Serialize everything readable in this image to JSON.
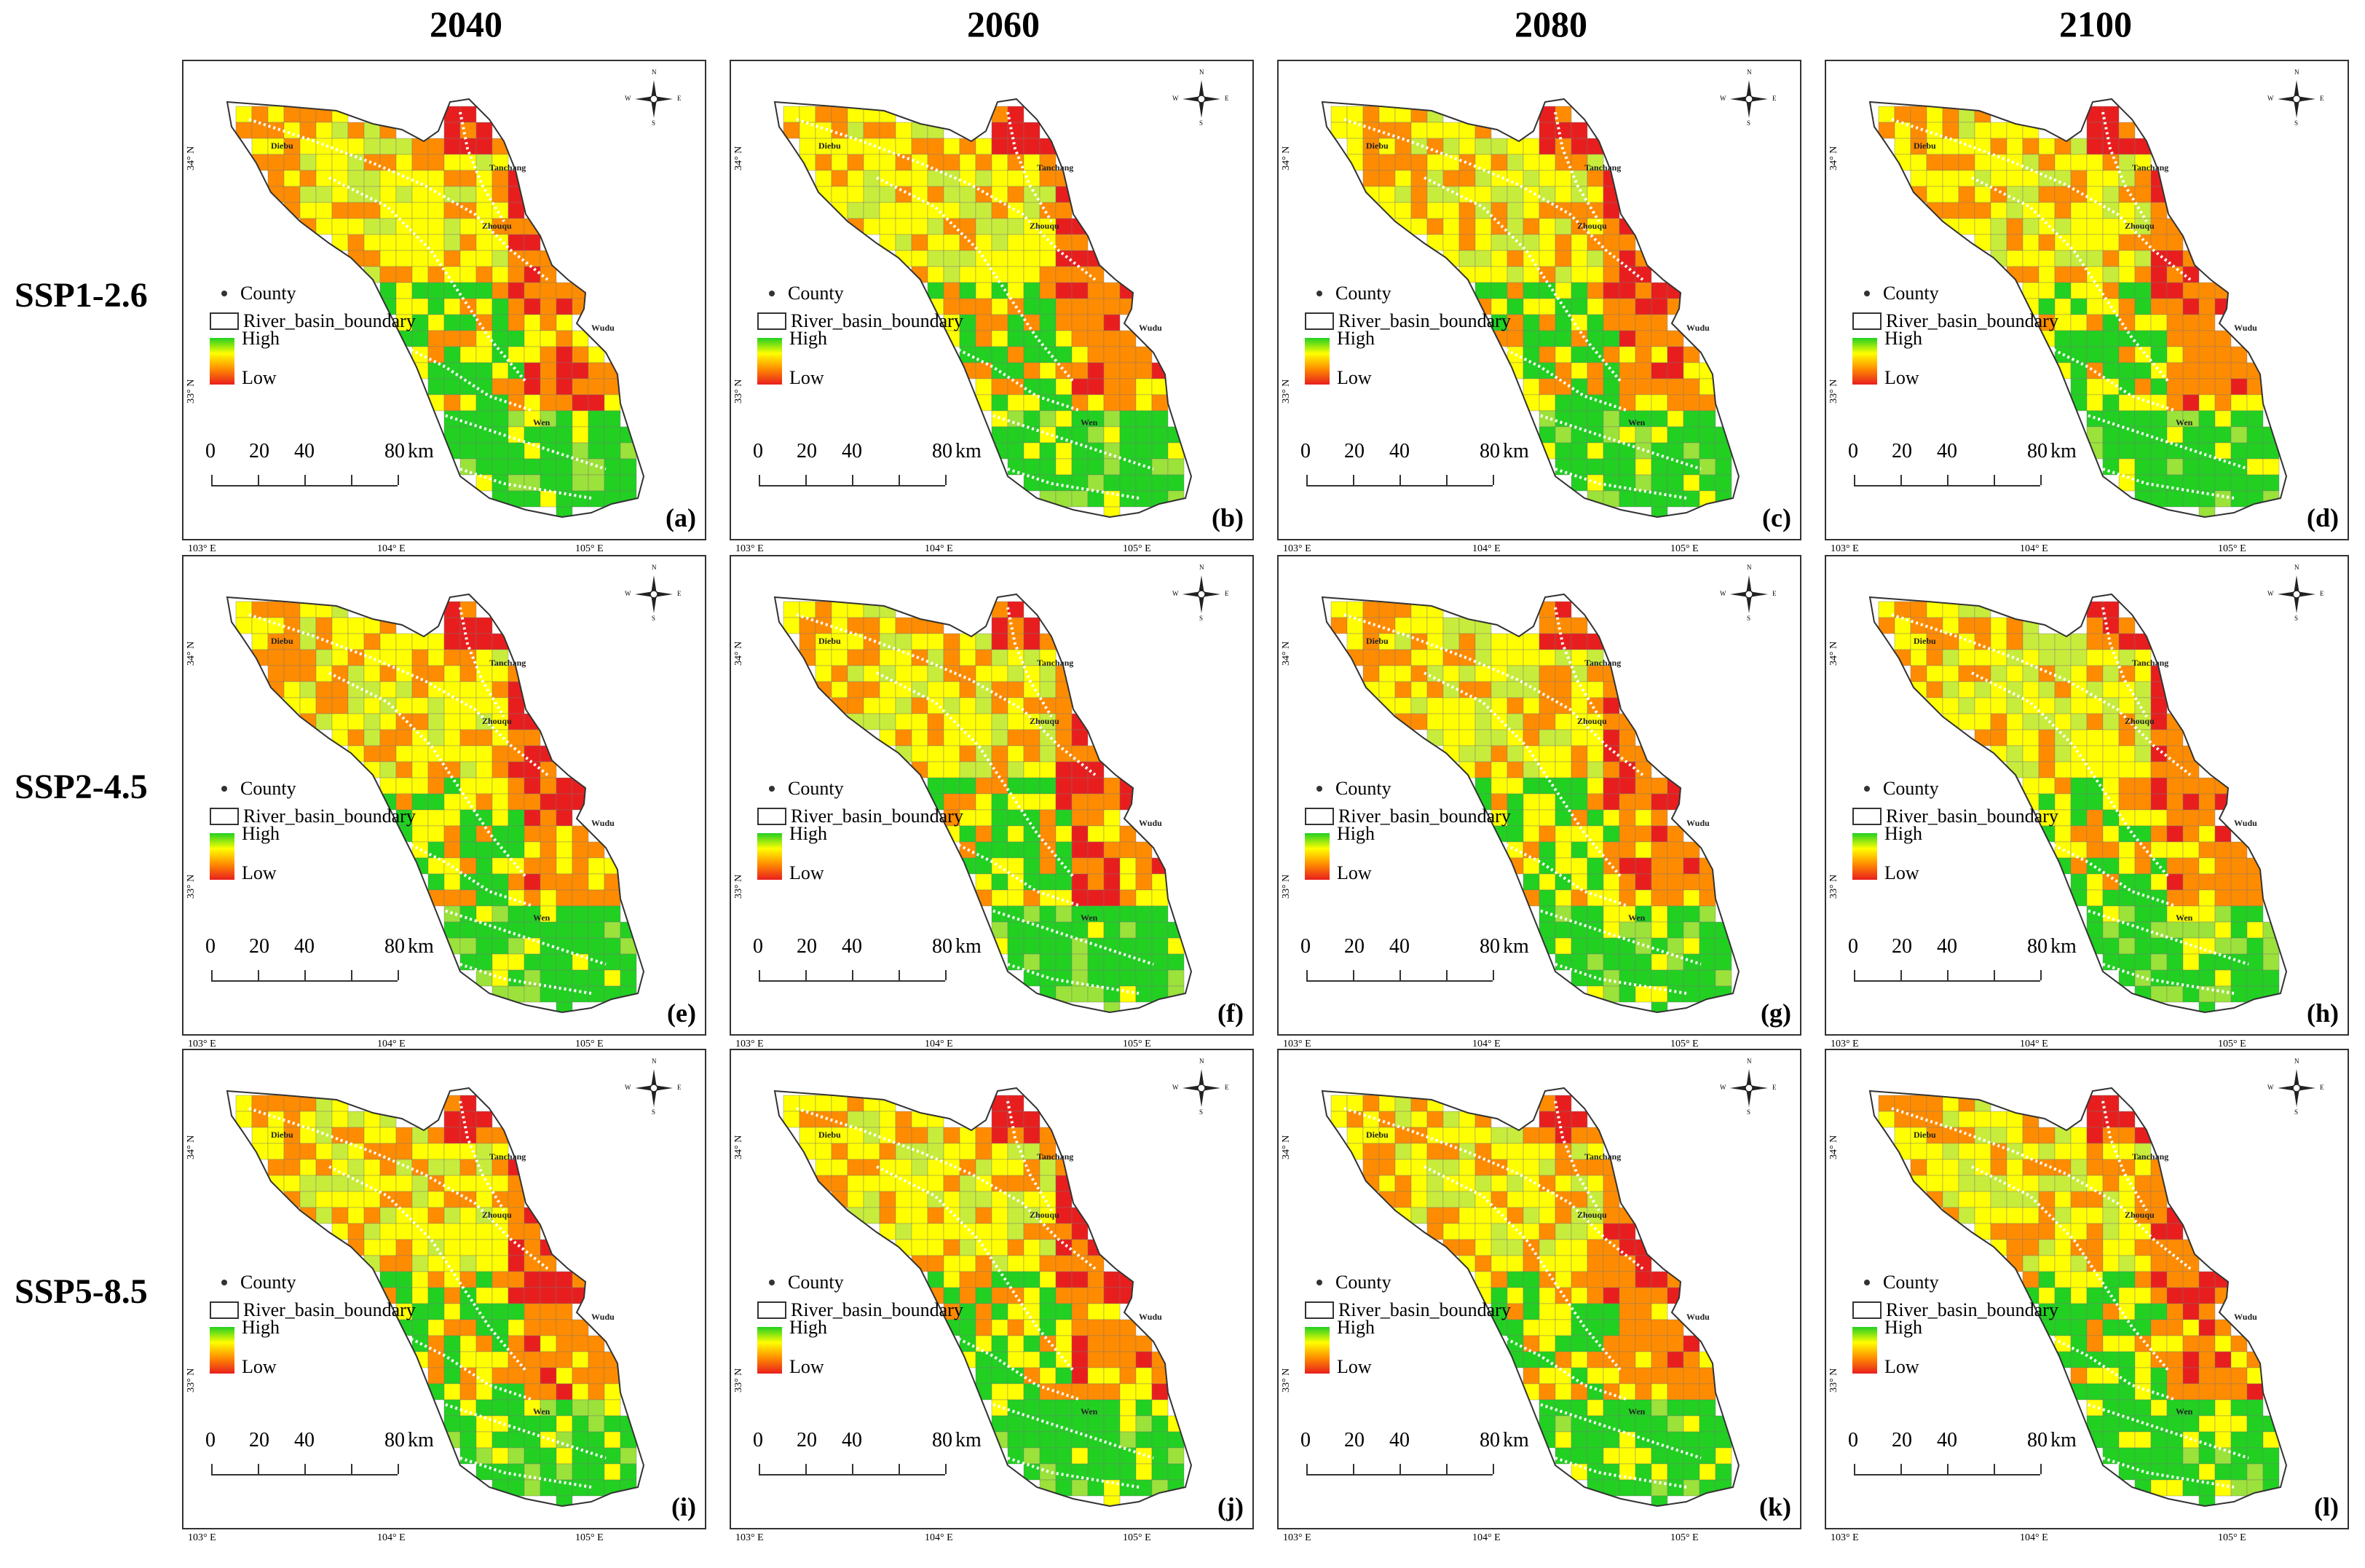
{
  "columns": [
    "2040",
    "2060",
    "2080",
    "2100"
  ],
  "rows": [
    "SSP1-2.6",
    "SSP2-4.5",
    "SSP5-8.5"
  ],
  "panel_labels": [
    "(a)",
    "(b)",
    "(c)",
    "(d)",
    "(e)",
    "(f)",
    "(g)",
    "(h)",
    "(i)",
    "(j)",
    "(k)",
    "(l)"
  ],
  "legend": {
    "county": "County",
    "boundary": "River_basin_boundary",
    "high": "High",
    "low": "Low"
  },
  "scale": {
    "t0": "0",
    "t20": "20",
    "t40": "40",
    "t80": "80",
    "unit": "km"
  },
  "axes": {
    "lat_34": "34° N",
    "lat_33": "33° N",
    "lon_103": "103° E",
    "lon_104": "104° E",
    "lon_105": "105° E"
  },
  "compass": {
    "n": "N",
    "s": "S",
    "e": "E",
    "w": "W"
  },
  "towns": {
    "diebu": "Diebu",
    "tanchang": "Tanchang",
    "zhouqu": "Zhouqu",
    "wudu": "Wudu",
    "wen": "Wen"
  },
  "colors": {
    "high": "#22d022",
    "mid": "#ffff00",
    "low_mid": "#ff8c00",
    "low": "#e81e1e",
    "river": "#ffffff",
    "boundary": "#333333"
  }
}
